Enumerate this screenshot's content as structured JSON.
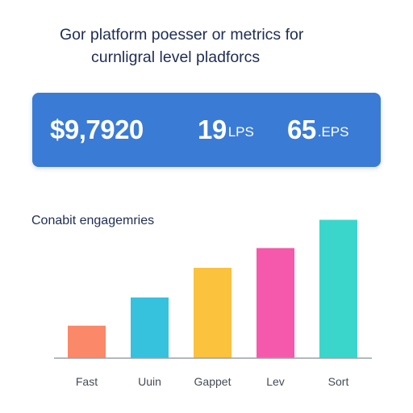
{
  "header": {
    "line1": "Gor platform poesser or metrics for",
    "line2": "curnligral level pladforcs"
  },
  "metrics": [
    {
      "value": "$9,7920",
      "unit": ""
    },
    {
      "value": "19",
      "unit": "LPS"
    },
    {
      "value": "65",
      "unit": ".EPS"
    }
  ],
  "colors": {
    "card_bg": "#3a7bd5",
    "axis": "#9aa0a8"
  },
  "chart_data": {
    "type": "bar",
    "title": "Conabit engagemries",
    "categories": [
      "Fast",
      "Uuin",
      "Gappet",
      "Lev",
      "Sort"
    ],
    "values": [
      23,
      43,
      64,
      78,
      98
    ],
    "colors": [
      "#fb8868",
      "#36c1dd",
      "#fbc23d",
      "#f559ac",
      "#3ad6cc"
    ],
    "ylim": [
      0,
      100
    ],
    "xlabel": "",
    "ylabel": "",
    "grid": false
  }
}
